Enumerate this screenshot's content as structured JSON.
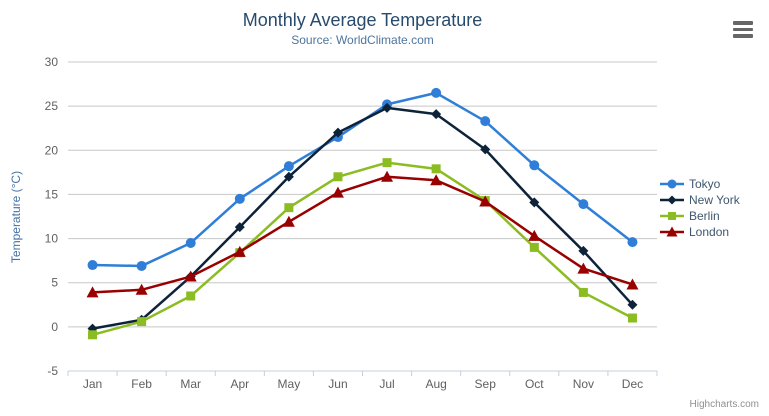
{
  "chart_data": {
    "type": "line",
    "title": "Monthly Average Temperature",
    "subtitle": "Source: WorldClimate.com",
    "xlabel": "",
    "ylabel": "Temperature (°C)",
    "categories": [
      "Jan",
      "Feb",
      "Mar",
      "Apr",
      "May",
      "Jun",
      "Jul",
      "Aug",
      "Sep",
      "Oct",
      "Nov",
      "Dec"
    ],
    "series": [
      {
        "name": "Tokyo",
        "color": "#2f7ed8",
        "marker": "circle",
        "values": [
          7.0,
          6.9,
          9.5,
          14.5,
          18.2,
          21.5,
          25.2,
          26.5,
          23.3,
          18.3,
          13.9,
          9.6
        ]
      },
      {
        "name": "New York",
        "color": "#0d233a",
        "marker": "diamond",
        "values": [
          -0.2,
          0.8,
          5.7,
          11.3,
          17.0,
          22.0,
          24.8,
          24.1,
          20.1,
          14.1,
          8.6,
          2.5
        ]
      },
      {
        "name": "Berlin",
        "color": "#8bbc21",
        "marker": "square",
        "values": [
          -0.9,
          0.6,
          3.5,
          8.4,
          13.5,
          17.0,
          18.6,
          17.9,
          14.3,
          9.0,
          3.9,
          1.0
        ]
      },
      {
        "name": "London",
        "color": "#990000",
        "marker": "triangle",
        "values": [
          3.9,
          4.2,
          5.7,
          8.5,
          11.9,
          15.2,
          17.0,
          16.6,
          14.2,
          10.3,
          6.6,
          4.8
        ]
      }
    ],
    "ylim": [
      -5,
      30
    ],
    "ytick_step": 5,
    "grid": true,
    "legend_position": "right"
  },
  "colors": {
    "grid": "#c8c8c8",
    "axis_line": "#c0d0e0",
    "axis_label": "#606060",
    "title": "#274b6d",
    "subtitle": "#4d759e",
    "y_axis_title": "#4572a7",
    "legend_text": "#3e576f",
    "credits": "#909090",
    "menu_icon": "#666666"
  },
  "credits": {
    "text": "Highcharts.com"
  }
}
